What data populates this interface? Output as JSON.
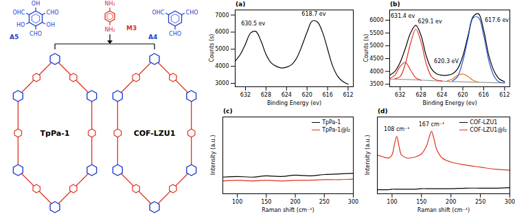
{
  "diagram": {
    "monomers": [
      {
        "label": "A5",
        "color": "#1f3fd0",
        "substituents": [
          "OH",
          "CHO",
          "OH",
          "CHO",
          "HO",
          "OHC"
        ]
      },
      {
        "label": "M3",
        "color": "#e0301e",
        "substituents": [
          "NH₂",
          null,
          null,
          "NH₂",
          null,
          null
        ]
      },
      {
        "label": "A4",
        "color": "#1f3fd0",
        "substituents": [
          null,
          "CHO",
          null,
          "CHO",
          null,
          "OHC"
        ]
      }
    ],
    "frameworks": [
      {
        "label": "TpPa-1",
        "node_color": "#1f3fd0",
        "linker_color": "#e0301e"
      },
      {
        "label": "COF-LZU1",
        "node_color": "#1f3fd0",
        "linker_color": "#e0301e"
      }
    ]
  },
  "chart_data": [
    {
      "type": "line",
      "title": "(a)",
      "x_label": "Binding Energy (ev)",
      "y_label": "Counts (s)",
      "x": [
        634,
        633,
        632,
        631,
        630,
        629,
        628,
        627,
        626,
        625,
        624,
        623,
        622,
        621,
        620,
        619,
        618,
        617,
        616,
        615,
        614,
        613,
        612
      ],
      "xlim": [
        634,
        611
      ],
      "xticks": [
        632,
        628,
        624,
        620,
        616,
        612
      ],
      "ylim": [
        2800,
        7300
      ],
      "yticks": [
        3000,
        4000,
        5000,
        6000,
        7000
      ],
      "grid": false,
      "series": [
        {
          "color": "#000000",
          "values": [
            4300,
            4700,
            5300,
            5950,
            6050,
            5500,
            4700,
            4200,
            4000,
            3900,
            3950,
            4100,
            4500,
            5200,
            6000,
            6650,
            6600,
            6000,
            5000,
            4000,
            3400,
            3100,
            2950
          ]
        }
      ],
      "annotations": [
        {
          "text": "630.5 ev",
          "x": 630.5,
          "y": 6500
        },
        {
          "text": "618.7 ev",
          "x": 618.7,
          "y": 7050
        }
      ]
    },
    {
      "type": "line",
      "title": "(b)",
      "x_label": "Binding Energy (ev)",
      "y_label": "Counts (s)",
      "x": [
        634,
        633,
        632,
        631,
        630,
        629,
        628,
        627,
        626,
        625,
        624,
        623,
        622,
        621,
        620,
        619,
        618,
        617,
        616,
        615,
        614,
        613,
        612
      ],
      "xlim": [
        634,
        611
      ],
      "xticks": [
        632,
        628,
        624,
        620,
        616,
        612
      ],
      "ylim": [
        3400,
        6400
      ],
      "yticks": [
        3500,
        4000,
        4500,
        5000,
        5500,
        6000
      ],
      "grid": false,
      "series": [
        {
          "color": "#000000",
          "values": [
            3850,
            4000,
            4350,
            4900,
            5500,
            5800,
            5400,
            4600,
            4100,
            3900,
            3850,
            3850,
            3900,
            4100,
            4600,
            5400,
            6150,
            6250,
            5600,
            4600,
            4000,
            3700,
            3600
          ]
        },
        {
          "color": "#999999",
          "values": [
            3700,
            3695,
            3690,
            3685,
            3680,
            3670,
            3660,
            3650,
            3640,
            3630,
            3620,
            3610,
            3600,
            3595,
            3590,
            3585,
            3580,
            3575,
            3570,
            3565,
            3560,
            3555,
            3550
          ]
        },
        {
          "color": "#e0301e",
          "values": [
            null,
            3720,
            3800,
            4300,
            5100,
            5650,
            5150,
            4300,
            3800,
            3660,
            3630,
            null,
            null,
            null,
            null,
            null,
            null,
            null,
            null,
            null,
            null,
            null,
            null
          ]
        },
        {
          "color": "#e0301e",
          "values": [
            3720,
            3850,
            4200,
            4350,
            4050,
            3750,
            3660,
            null,
            null,
            null,
            null,
            null,
            null,
            null,
            null,
            null,
            null,
            null,
            null,
            null,
            null,
            null,
            null
          ]
        },
        {
          "color": "#e8741c",
          "values": [
            null,
            null,
            null,
            null,
            null,
            null,
            null,
            null,
            null,
            null,
            null,
            3630,
            3700,
            3850,
            3900,
            3800,
            3650,
            3580,
            null,
            null,
            null,
            null,
            null
          ]
        },
        {
          "color": "#1f4fd1",
          "values": [
            null,
            null,
            null,
            null,
            null,
            null,
            null,
            null,
            null,
            null,
            null,
            null,
            3620,
            3800,
            4400,
            5300,
            6100,
            6100,
            5400,
            4400,
            3800,
            3580,
            3555
          ]
        }
      ],
      "annotations": [
        {
          "text": "631.4 ev",
          "x": 633.8,
          "y": 6150
        },
        {
          "text": "629.1 ev",
          "x": 628.6,
          "y": 5950
        },
        {
          "text": "620.3 eV",
          "x": 620.8,
          "y": 4400
        },
        {
          "text": "617.6 ev",
          "x": 615.8,
          "y": 6000
        }
      ]
    },
    {
      "type": "line",
      "title": "(c)",
      "x_label": "Raman shift (cm⁻¹)",
      "y_label": "Intensity (a.u.)",
      "x": [
        75,
        100,
        125,
        150,
        175,
        200,
        225,
        250,
        275,
        300
      ],
      "xlim": [
        75,
        300
      ],
      "xticks": [
        100,
        150,
        200,
        250,
        300
      ],
      "ylim": [
        0,
        6
      ],
      "tick_labels": "x",
      "grid": false,
      "legend": "top-right",
      "series": [
        {
          "name": "TpPa-1",
          "color": "#000000",
          "values": [
            1.3,
            1.35,
            1.3,
            1.4,
            1.35,
            1.45,
            1.4,
            1.5,
            1.55,
            1.6
          ]
        },
        {
          "name": "TpPa-1@I₂",
          "color": "#e0301e",
          "values": [
            1.0,
            1.05,
            1.0,
            1.05,
            1.0,
            1.05,
            1.05,
            1.1,
            1.1,
            1.15
          ]
        }
      ]
    },
    {
      "type": "line",
      "title": "(d)",
      "x_label": "Raman shift (cm⁻¹)",
      "y_label": "Intensity (a.u.)",
      "x": [
        75,
        85,
        95,
        100,
        104,
        108,
        112,
        116,
        125,
        140,
        150,
        158,
        163,
        167,
        171,
        176,
        185,
        200,
        225,
        250,
        275,
        300
      ],
      "xlim": [
        75,
        300
      ],
      "xticks": [
        100,
        150,
        200,
        250,
        300
      ],
      "ylim": [
        0,
        7.5
      ],
      "tick_labels": "x",
      "grid": false,
      "legend": "top-right",
      "series": [
        {
          "name": "COF-LZU1",
          "color": "#000000",
          "values": [
            0.4,
            0.4,
            0.4,
            0.45,
            0.45,
            0.45,
            0.45,
            0.45,
            0.45,
            0.45,
            0.5,
            0.5,
            0.5,
            0.5,
            0.5,
            0.5,
            0.5,
            0.5,
            0.55,
            0.55,
            0.55,
            0.6
          ]
        },
        {
          "name": "COF-LZU1@I₂",
          "color": "#e0301e",
          "values": [
            3.8,
            3.6,
            3.5,
            3.8,
            4.8,
            5.6,
            4.6,
            3.8,
            3.5,
            3.6,
            3.9,
            4.6,
            5.5,
            6.1,
            5.4,
            4.3,
            3.5,
            3.1,
            2.8,
            2.6,
            2.4,
            2.3
          ]
        }
      ],
      "annotations": [
        {
          "text": "108 cm⁻¹",
          "x": 108,
          "y": 6.3
        },
        {
          "text": "167 cm⁻¹",
          "x": 167,
          "y": 6.8
        }
      ]
    }
  ]
}
